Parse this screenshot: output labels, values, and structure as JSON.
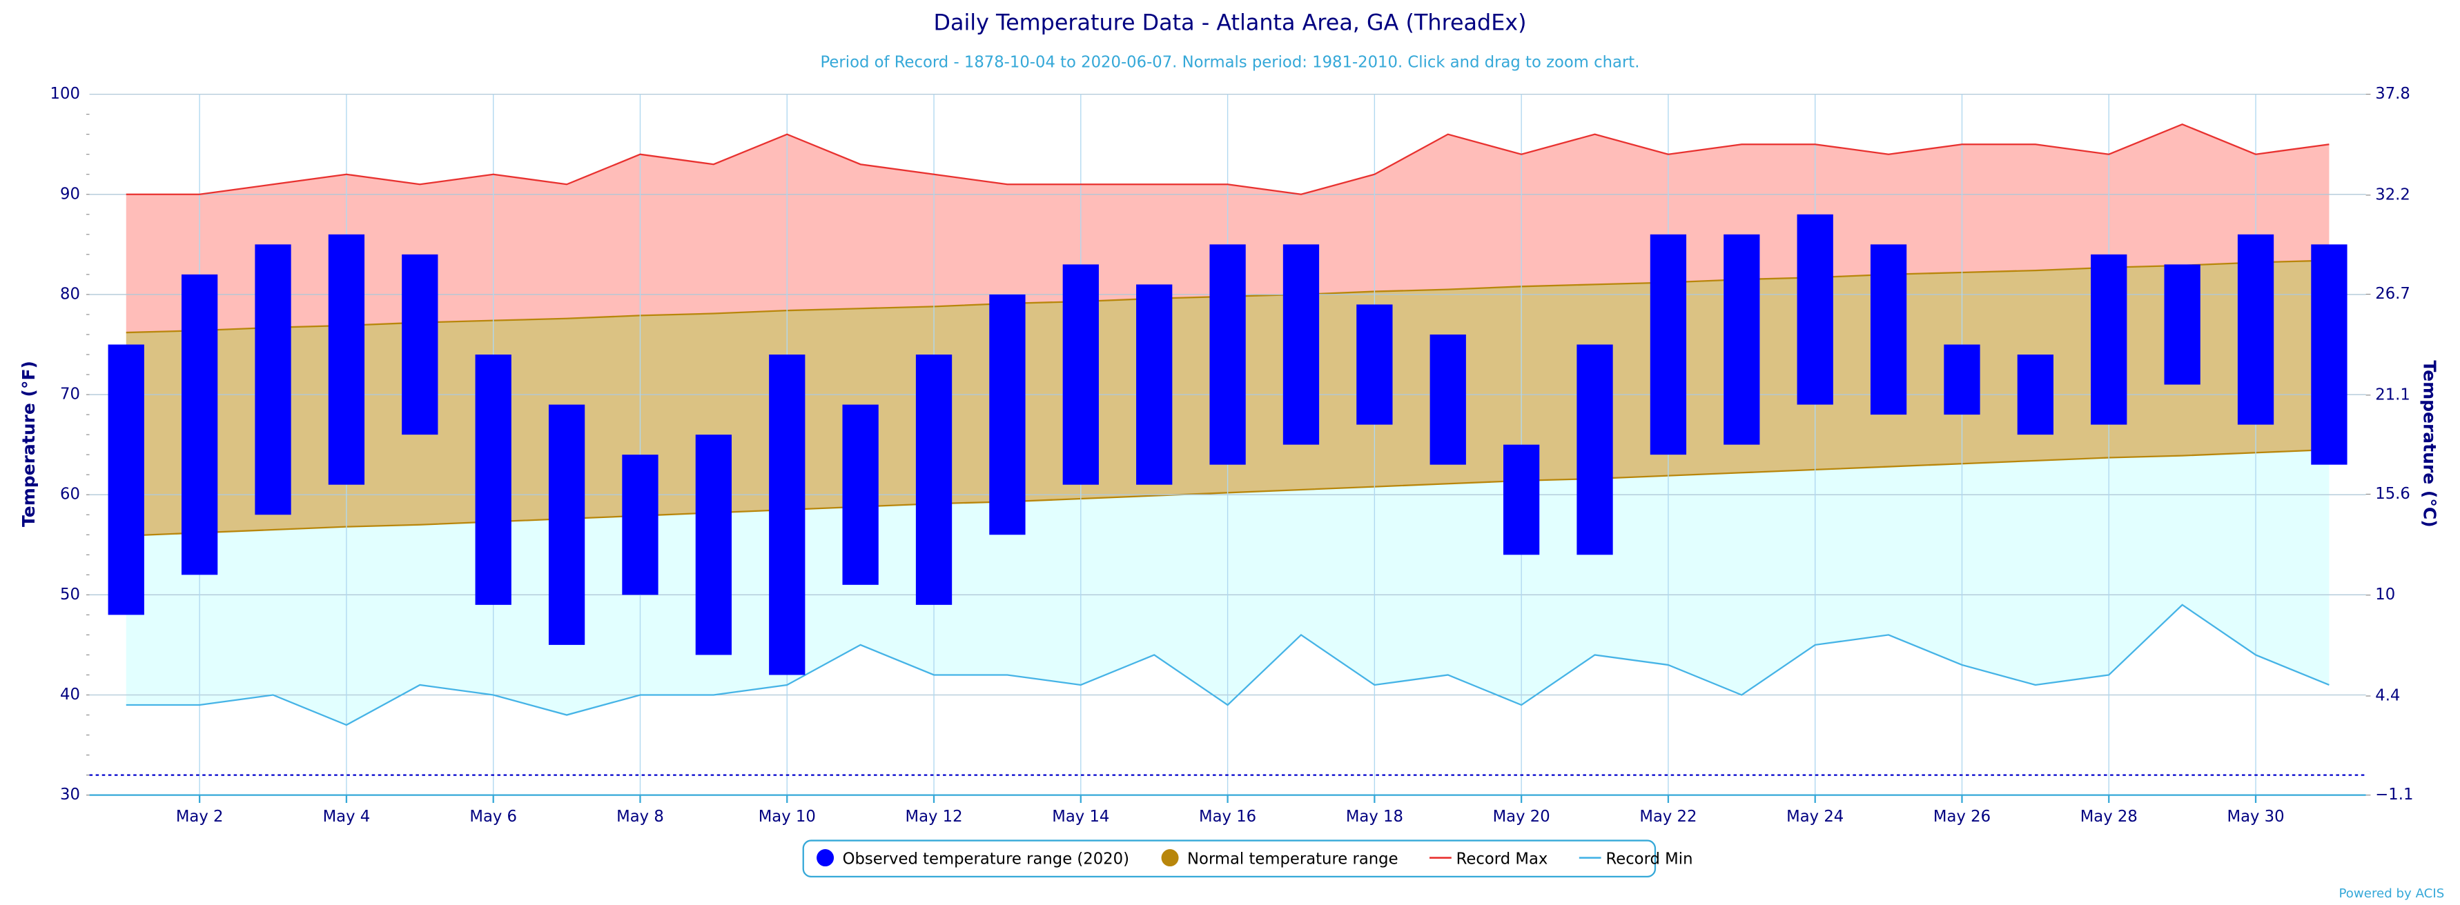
{
  "chart_data": {
    "type": "range_bar",
    "title": "Daily Temperature Data - Atlanta Area, GA (ThreadEx)",
    "subtitle": "Period of Record - 1878-10-04 to 2020-06-07. Normals period: 1981-2010. Click and drag to zoom chart.",
    "ylabel": "Temperature (°F)",
    "y2label": "Temperature (°C)",
    "categories": [
      null,
      "May 2",
      null,
      "May 4",
      null,
      "May 6",
      null,
      "May 8",
      null,
      "May 10",
      null,
      "May 12",
      null,
      "May 14",
      null,
      "May 16",
      null,
      "May 18",
      null,
      "May 20",
      null,
      "May 22",
      null,
      "May 24",
      null,
      "May 26",
      null,
      "May 28",
      null,
      "May 30",
      null
    ],
    "ylim": [
      30,
      100
    ],
    "yticks": [
      30,
      40,
      50,
      60,
      70,
      80,
      90,
      100
    ],
    "y2lim": [
      -1.1,
      37.8
    ],
    "y2ticks": [
      {
        "value": -1.1,
        "label": "−1.1"
      },
      4.4,
      10,
      15.6,
      21.1,
      26.7,
      32.2,
      37.8
    ],
    "freezing_line": 32,
    "grid": true,
    "series": [
      {
        "name": "Observed temperature range (2020)",
        "color": "#0000ff",
        "kind": "bars",
        "low": [
          48,
          52,
          58,
          61,
          66,
          49,
          45,
          50,
          44,
          42,
          51,
          49,
          56,
          61,
          61,
          63,
          65,
          67,
          63,
          54,
          54,
          64,
          65,
          69,
          68,
          68,
          66,
          67,
          71,
          67,
          63
        ],
        "high": [
          75,
          82,
          85,
          86,
          84,
          74,
          69,
          64,
          66,
          74,
          69,
          74,
          80,
          83,
          81,
          85,
          85,
          79,
          76,
          65,
          75,
          86,
          86,
          88,
          85,
          75,
          74,
          84,
          83,
          86,
          85
        ]
      },
      {
        "name": "Normal temperature range",
        "color": "#b8860b",
        "fill": "#dbc283",
        "kind": "band",
        "low": [
          55.9,
          56.2,
          56.5,
          56.8,
          57.0,
          57.3,
          57.6,
          57.9,
          58.2,
          58.5,
          58.8,
          59.1,
          59.3,
          59.6,
          59.9,
          60.2,
          60.5,
          60.8,
          61.1,
          61.4,
          61.6,
          61.9,
          62.2,
          62.5,
          62.8,
          63.1,
          63.4,
          63.7,
          63.9,
          64.2,
          64.5
        ],
        "high": [
          76.2,
          76.4,
          76.7,
          76.9,
          77.2,
          77.4,
          77.6,
          77.9,
          78.1,
          78.4,
          78.6,
          78.8,
          79.1,
          79.3,
          79.6,
          79.8,
          80.0,
          80.3,
          80.5,
          80.8,
          81.0,
          81.2,
          81.5,
          81.7,
          82.0,
          82.2,
          82.4,
          82.7,
          82.9,
          83.2,
          83.4
        ]
      },
      {
        "name": "Record Max",
        "color": "#e8312f",
        "fill": "#ffbdb9",
        "kind": "line",
        "values": [
          90,
          90,
          91,
          92,
          91,
          92,
          91,
          94,
          93,
          96,
          93,
          92,
          91,
          91,
          91,
          91,
          90,
          92,
          96,
          94,
          96,
          94,
          95,
          95,
          94,
          95,
          95,
          94,
          97,
          94,
          95
        ]
      },
      {
        "name": "Record Min",
        "color": "#45b3e6",
        "fill": "#e2ffff",
        "kind": "line",
        "values": [
          39,
          39,
          40,
          37,
          41,
          40,
          38,
          40,
          40,
          41,
          45,
          42,
          42,
          41,
          44,
          39,
          46,
          41,
          42,
          39,
          44,
          43,
          40,
          45,
          46,
          43,
          41,
          42,
          49,
          44,
          41
        ]
      }
    ],
    "footer": "Powered by ACIS"
  }
}
